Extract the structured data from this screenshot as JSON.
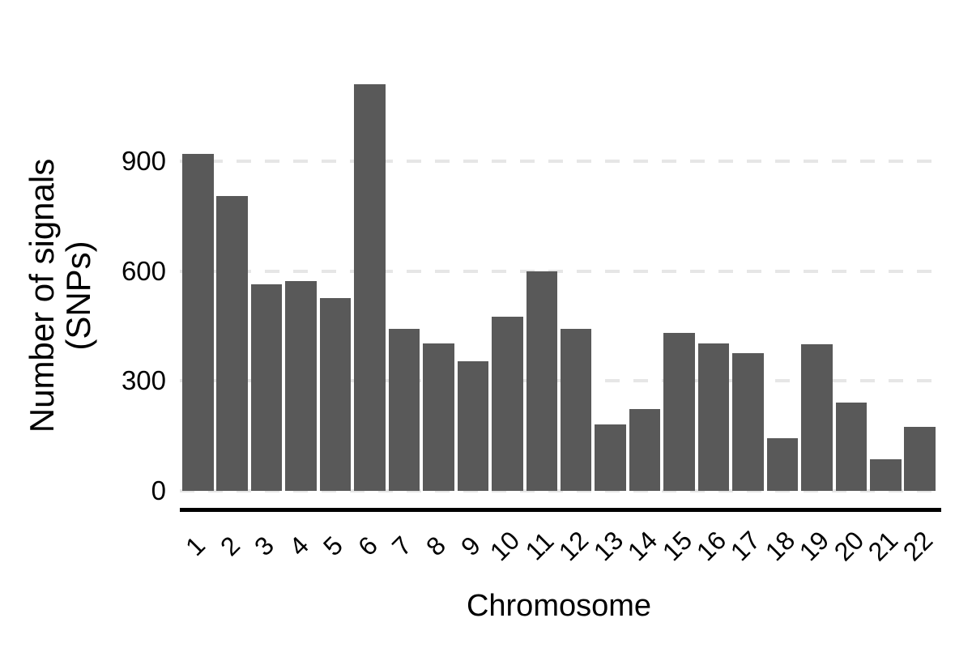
{
  "chart_data": {
    "type": "bar",
    "title": "",
    "xlabel": "Chromosome",
    "ylabel_lines": [
      "Number of signals",
      "(SNPs)"
    ],
    "categories": [
      "1",
      "2",
      "3",
      "4",
      "5",
      "6",
      "7",
      "8",
      "9",
      "10",
      "11",
      "12",
      "13",
      "14",
      "15",
      "16",
      "17",
      "18",
      "19",
      "20",
      "21",
      "22"
    ],
    "values": [
      920,
      805,
      565,
      573,
      526,
      1110,
      443,
      403,
      353,
      475,
      600,
      443,
      182,
      224,
      432,
      403,
      377,
      144,
      401,
      241,
      87,
      175
    ],
    "yticks": [
      0,
      300,
      600,
      900
    ],
    "ylim": [
      0,
      1165
    ],
    "grid": "horizontal dashed lines at y ticks",
    "legend": "none",
    "colors": {
      "bar": "#595959",
      "gridline": "#e6e6e6",
      "axis_line": "#000000",
      "text": "#000000",
      "background": "#ffffff"
    }
  }
}
